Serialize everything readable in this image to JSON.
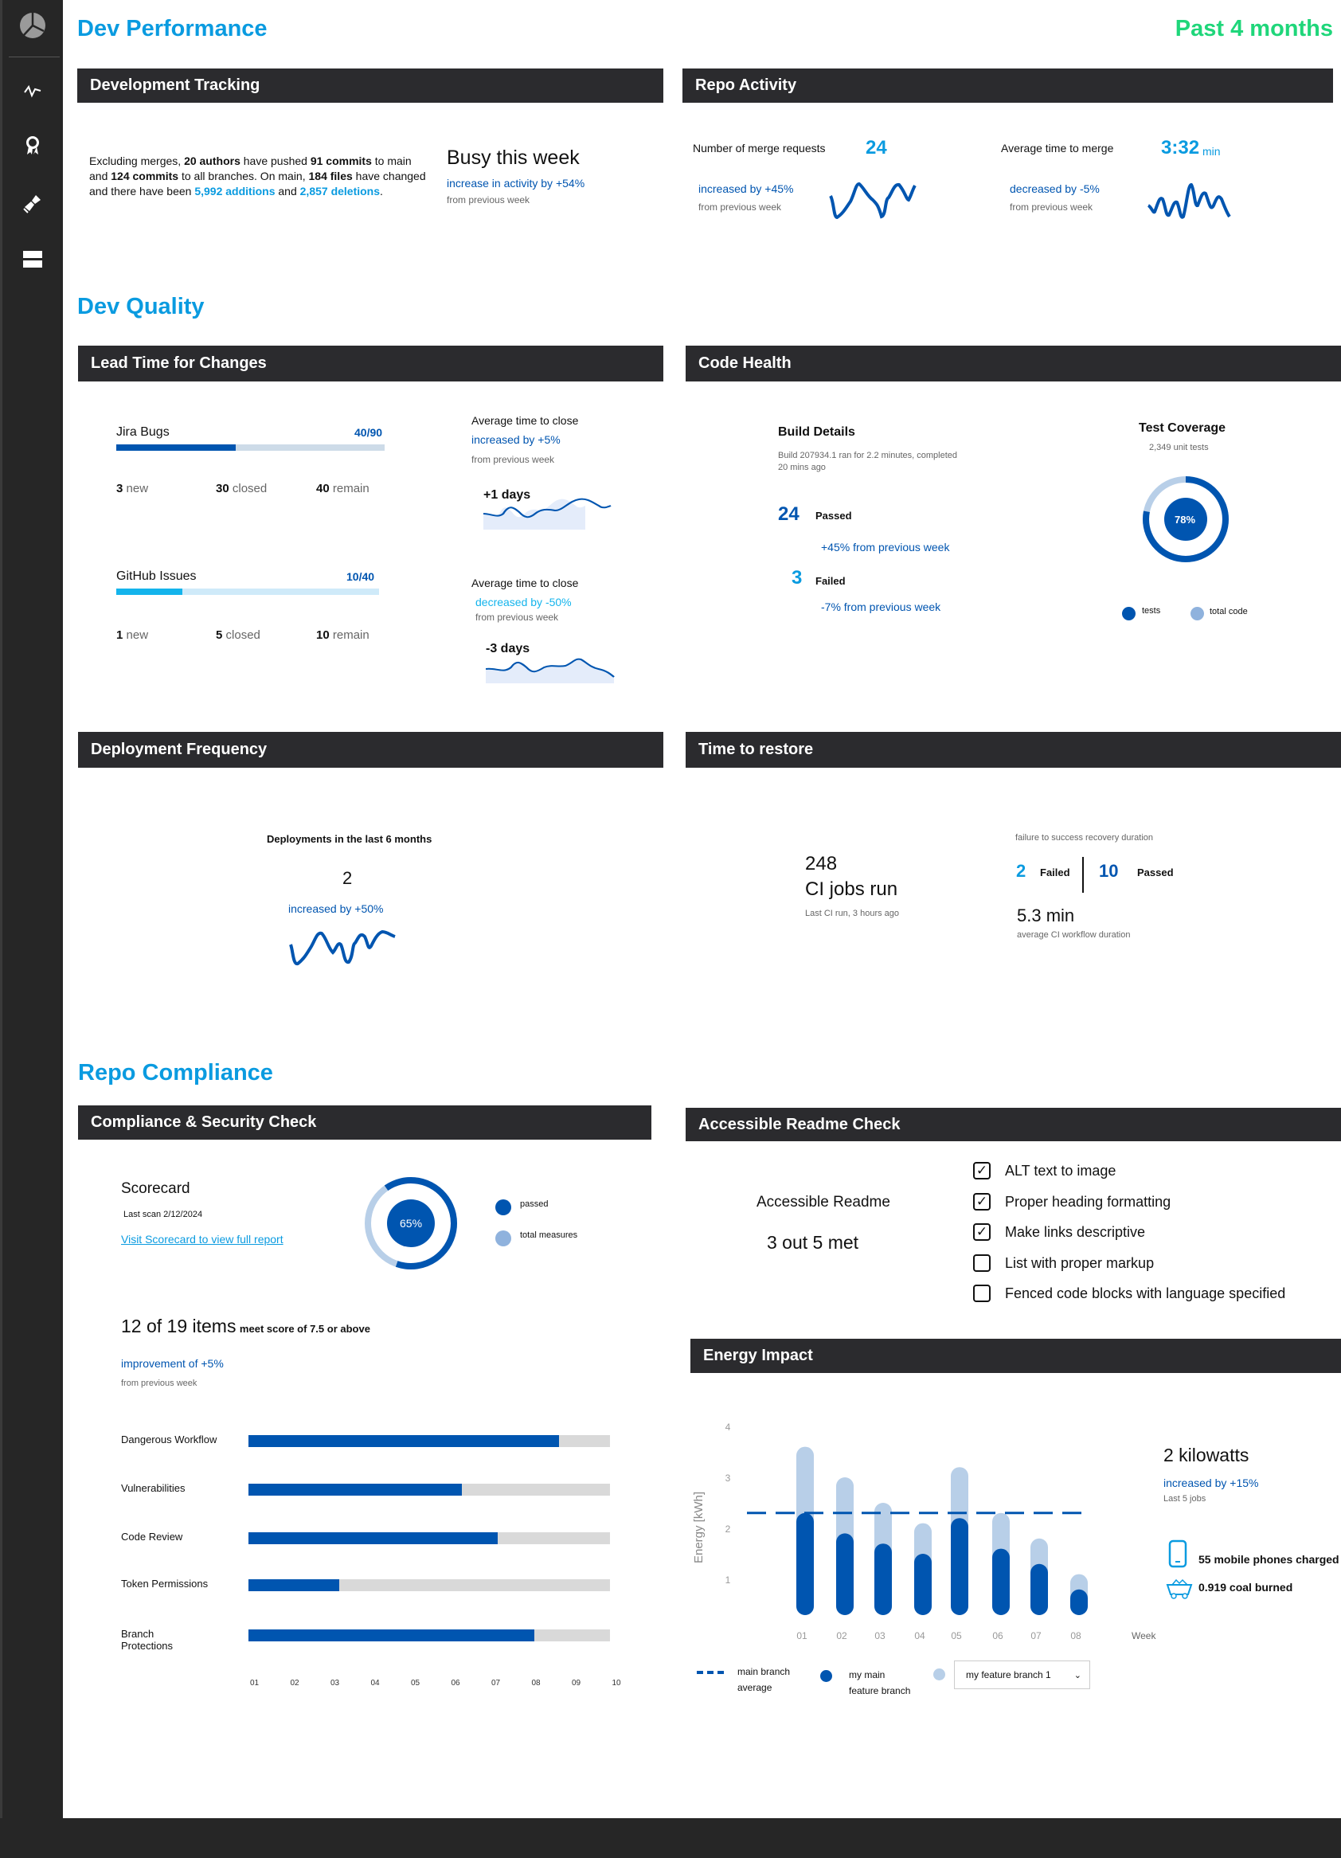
{
  "colors": {
    "accent": "#0a9be0",
    "dark_blue": "#0055b0",
    "light_blue": "#b8cfe8",
    "green": "#1fd67a",
    "header_bg": "#2b2b2e"
  },
  "sidebar": {
    "items": [
      {
        "icon": "pie-chart-icon"
      },
      {
        "icon": "activity-icon"
      },
      {
        "icon": "award-icon"
      },
      {
        "icon": "stamp-icon"
      },
      {
        "icon": "layout-rows-icon"
      }
    ]
  },
  "header": {
    "title": "Dev Performance",
    "period": "Past 4 months"
  },
  "dev_tracking": {
    "title": "Development Tracking",
    "p": [
      "Excluding merges, ",
      "20 authors",
      " have pushed ",
      "91 commits",
      " to main and ",
      "124 commits",
      " to all branches. On main, ",
      "184 files",
      " have changed and there have been ",
      "5,992 additions",
      " and ",
      "2,857 deletions",
      "."
    ],
    "busy_title": "Busy this week",
    "busy_change": "increase in activity by +54%",
    "busy_from": "from previous week"
  },
  "repo_activity": {
    "title": "Repo Activity",
    "merge_label": "Number of merge requests",
    "merge_value": "24",
    "merge_change": "increased by +45%",
    "merge_from": "from previous week",
    "time_label": "Average time to merge",
    "time_value": "3:32",
    "time_unit": "min",
    "time_change": "decreased by -5%",
    "time_from": "from previous week"
  },
  "dev_quality": {
    "title": "Dev Quality"
  },
  "lead_time": {
    "title": "Lead Time for Changes",
    "jira": {
      "label": "Jira Bugs",
      "ratio": "40/90",
      "progress": 0.444,
      "new_n": "3",
      "new_l": "new",
      "closed_n": "30",
      "closed_l": "closed",
      "remain_n": "40",
      "remain_l": "remain"
    },
    "github": {
      "label": "GitHub Issues",
      "ratio": "10/40",
      "progress": 0.25,
      "new_n": "1",
      "new_l": "new",
      "closed_n": "5",
      "closed_l": "closed",
      "remain_n": "10",
      "remain_l": "remain"
    },
    "close1": {
      "label": "Average time to close",
      "change": "increased by +5%",
      "from": "from previous week",
      "value": "+1 days"
    },
    "close2": {
      "label": "Average time to close",
      "change": "decreased by -50%",
      "from": "from previous week",
      "value": "-3 days"
    }
  },
  "code_health": {
    "title": "Code Health",
    "build_title": "Build Details",
    "build_desc1": "Build 207934.1 ran for 2.2 minutes, completed",
    "build_desc2": "20 mins ago",
    "passed_n": "24",
    "passed_l": "Passed",
    "passed_change": "+45% from previous week",
    "failed_n": "3",
    "failed_l": "Failed",
    "failed_change": "-7% from previous week",
    "coverage_title": "Test Coverage",
    "coverage_sub": "2,349 unit tests",
    "coverage_pct": "78%",
    "coverage_value": 78,
    "legend_tests": "tests",
    "legend_total": "total code"
  },
  "deploy": {
    "title": "Deployment Frequency",
    "label": "Deployments in the last 6 months",
    "value": "2",
    "change": "increased by +50%"
  },
  "restore": {
    "title": "Time to restore",
    "ci_n": "248",
    "ci_l": "CI jobs run",
    "ci_last": "Last CI run, 3 hours ago",
    "recovery_label": "failure to success recovery duration",
    "failed_n": "2",
    "failed_l": "Failed",
    "passed_n": "10",
    "passed_l": "Passed",
    "duration": "5.3 min",
    "duration_label": "average CI workflow duration"
  },
  "repo_compliance": {
    "title": "Repo Compliance"
  },
  "compliance": {
    "title": "Compliance & Security Check",
    "scorecard": "Scorecard",
    "last_scan": "Last scan 2/12/2024",
    "link": "Visit Scorecard to view full report",
    "pct": "65%",
    "pct_value": 65,
    "legend_passed": "passed",
    "legend_total": "total measures",
    "items_big": "12 of 19 items",
    "items_small": "meet score of 7.5 or above",
    "change": "improvement of +5%",
    "from": "from previous week"
  },
  "chart_data": [
    {
      "type": "bar",
      "orientation": "horizontal",
      "categories": [
        "Dangerous Workflow",
        "Vulnerabilities",
        "Code Review",
        "Token Permissions",
        "Branch Protections"
      ],
      "values": [
        8.6,
        5.9,
        6.9,
        2.5,
        7.9
      ],
      "xlim": [
        0,
        10
      ],
      "tick_labels": [
        "01",
        "02",
        "03",
        "04",
        "05",
        "06",
        "07",
        "08",
        "09",
        "10"
      ],
      "grid": false
    },
    {
      "type": "bar",
      "orientation": "vertical",
      "categories": [
        "01",
        "02",
        "03",
        "04",
        "05",
        "06",
        "07",
        "08"
      ],
      "xlabel": "Week",
      "ylabel": "Energy [kWh]",
      "ylim": [
        0,
        4
      ],
      "yticks": [
        "1",
        "2",
        "3",
        "4"
      ],
      "series": [
        {
          "name": "my main feature branch",
          "values": [
            2.3,
            1.9,
            1.7,
            1.5,
            2.2,
            1.6,
            1.3,
            0.8
          ],
          "color": "#0055b0"
        },
        {
          "name": "my feature branch 1",
          "values": [
            3.6,
            3.0,
            2.5,
            2.1,
            3.2,
            2.3,
            1.8,
            1.1
          ],
          "color": "#b8cfe8"
        }
      ],
      "reference_line": {
        "name": "main branch average",
        "value": 2.3,
        "style": "dashed"
      },
      "legend": "bottom",
      "grid": false
    }
  ],
  "readme": {
    "title": "Accessible Readme Check",
    "label": "Accessible Readme",
    "score": "3 out 5 met",
    "items": [
      {
        "label": "ALT text to image",
        "checked": true
      },
      {
        "label": "Proper heading formatting",
        "checked": true
      },
      {
        "label": "Make links descriptive",
        "checked": true
      },
      {
        "label": "List with proper markup",
        "checked": false
      },
      {
        "label": "Fenced code blocks with language specified",
        "checked": false
      }
    ]
  },
  "energy": {
    "title": "Energy Impact",
    "value": "2 kilowatts",
    "change": "increased by +15%",
    "sub": "Last 5 jobs",
    "phones": "55 mobile phones charged",
    "coal": "0.919 coal burned",
    "legend_avg1": "main branch",
    "legend_avg2": "average",
    "legend_main1": "my main",
    "legend_main2": "feature branch",
    "select_value": "my feature branch 1"
  }
}
